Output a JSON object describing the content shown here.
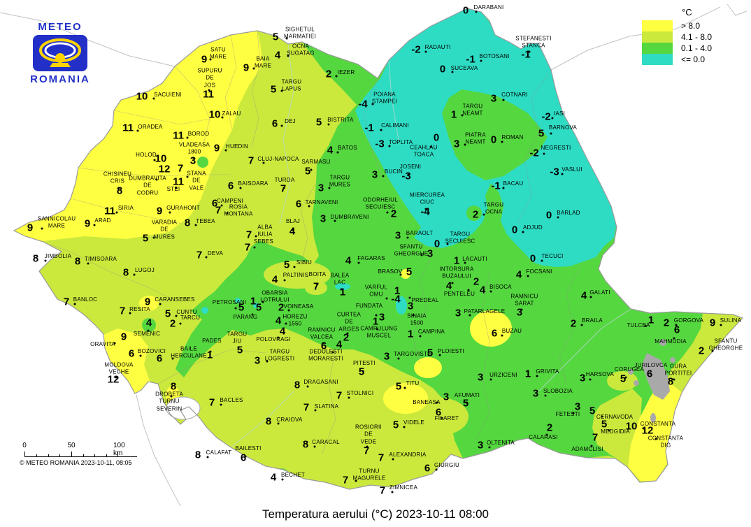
{
  "logo": {
    "top": "METEO",
    "bottom": "ROMANIA"
  },
  "legend": {
    "title": "°C",
    "items": [
      {
        "label": "> 8.0",
        "color": "#ffff42"
      },
      {
        "label": "4.1 - 8.0",
        "color": "#cbe93c"
      },
      {
        "label": "0.1 - 4.0",
        "color": "#55d73f"
      },
      {
        "label": "<= 0.0",
        "color": "#2edcc4"
      }
    ]
  },
  "colors": {
    "yellow": "#ffff42",
    "ygreen": "#cbe93c",
    "green": "#55d73f",
    "cyan": "#2edcc4"
  },
  "scalebar": {
    "t0": "0",
    "t50": "50",
    "t100": "100 km",
    "copyright": "© METEO ROMANIA 2023-10-11, 08:05"
  },
  "title": "Temperatura aerului (°C) 2023-10-11 08:00",
  "stations": [
    {
      "n": "SATU\nMARE",
      "v": "9",
      "vx": 292,
      "vy": 85,
      "nx": 312,
      "ny": 77
    },
    {
      "n": "SUPURU\nDE\nJOS",
      "v": "11",
      "vx": 298,
      "vy": 135,
      "nx": 300,
      "ny": 112
    },
    {
      "n": "SACUIENI",
      "v": "10",
      "vx": 203,
      "vy": 138,
      "nx": 240,
      "ny": 136
    },
    {
      "n": "ZALAU",
      "v": "10",
      "vx": 307,
      "vy": 164,
      "nx": 331,
      "ny": 163
    },
    {
      "n": "ORADEA",
      "v": "11",
      "vx": 183,
      "vy": 183,
      "nx": 215,
      "ny": 182
    },
    {
      "n": "BOROD",
      "v": "11",
      "vx": 255,
      "vy": 194,
      "nx": 284,
      "ny": 192
    },
    {
      "n": "BAIA\nMARE",
      "v": "9",
      "vx": 352,
      "vy": 97,
      "nx": 376,
      "ny": 90
    },
    {
      "n": "SIGHETUL\nMARMATIEI",
      "v": "5",
      "vx": 394,
      "vy": 53,
      "nx": 429,
      "ny": 48
    },
    {
      "n": "OCNA\nSUGATAG",
      "v": "4",
      "vx": 397,
      "vy": 79,
      "nx": 430,
      "ny": 72
    },
    {
      "n": "TARGU\nLAPUS",
      "v": "5",
      "vx": 391,
      "vy": 128,
      "nx": 417,
      "ny": 123
    },
    {
      "n": "IEZER",
      "v": "2",
      "vx": 470,
      "vy": 106,
      "nx": 495,
      "ny": 104
    },
    {
      "n": "DEJ",
      "v": "6",
      "vx": 393,
      "vy": 177,
      "nx": 415,
      "ny": 174
    },
    {
      "n": "BISTRITA",
      "v": "5",
      "vx": 456,
      "vy": 175,
      "nx": 487,
      "ny": 172
    },
    {
      "n": "POIANA\nSTAMPEI",
      "v": "-4",
      "vx": 519,
      "vy": 149,
      "nx": 550,
      "ny": 141
    },
    {
      "n": "CALIMANI",
      "v": "-1",
      "vx": 528,
      "vy": 183,
      "nx": 565,
      "ny": 180
    },
    {
      "n": "TOPLITA",
      "v": "-3",
      "vx": 543,
      "vy": 206,
      "nx": 573,
      "ny": 204
    },
    {
      "n": "HUEDIN",
      "v": "9",
      "vx": 310,
      "vy": 212,
      "nx": 339,
      "ny": 210
    },
    {
      "n": "CLUJ-NAPOCA",
      "v": "7",
      "vx": 359,
      "vy": 230,
      "nx": 398,
      "ny": 228
    },
    {
      "n": "SARMASU",
      "v": "5",
      "vx": 440,
      "vy": 245,
      "nx": 452,
      "ny": 232
    },
    {
      "n": "TURDA",
      "v": "7",
      "vx": 405,
      "vy": 270,
      "nx": 407,
      "ny": 258
    },
    {
      "n": "BAISOARA",
      "v": "6",
      "vx": 330,
      "vy": 266,
      "nx": 362,
      "ny": 263
    },
    {
      "n": "TARGU\nMURES",
      "v": "3",
      "vx": 459,
      "vy": 269,
      "nx": 486,
      "ny": 260
    },
    {
      "n": "BATOS",
      "v": "4",
      "vx": 472,
      "vy": 215,
      "nx": 497,
      "ny": 212
    },
    {
      "n": "BUCIN",
      "v": "3",
      "vx": 536,
      "vy": 250,
      "nx": 563,
      "ny": 246
    },
    {
      "n": "CAMPENI",
      "v": "6",
      "vx": 307,
      "vy": 291,
      "nx": 329,
      "ny": 288
    },
    {
      "n": "ROSIA\nMONTANA",
      "v": "7",
      "vx": 312,
      "vy": 301,
      "nx": 341,
      "ny": 302
    },
    {
      "n": "TARNAVENI",
      "v": "6",
      "vx": 427,
      "vy": 292,
      "nx": 460,
      "ny": 290
    },
    {
      "n": "ODORHEIUL\nSECUIESC",
      "v": "2",
      "vx": 563,
      "vy": 306,
      "nx": 544,
      "ny": 292
    },
    {
      "n": "DUMBRAVENI",
      "v": "3",
      "vx": 462,
      "vy": 313,
      "nx": 500,
      "ny": 311
    },
    {
      "n": "BLAJ",
      "v": "4",
      "vx": 418,
      "vy": 331,
      "nx": 419,
      "ny": 317
    },
    {
      "n": "ALBA\nIULIA",
      "v": "7",
      "vx": 356,
      "vy": 336,
      "nx": 379,
      "ny": 331
    },
    {
      "n": "SEBES",
      "v": "7",
      "vx": 354,
      "vy": 354,
      "nx": 377,
      "ny": 346
    },
    {
      "n": "DEVA",
      "v": "7",
      "vx": 285,
      "vy": 365,
      "nx": 308,
      "ny": 363
    },
    {
      "n": "TEBEA",
      "v": "8",
      "vx": 268,
      "vy": 319,
      "nx": 294,
      "ny": 317
    },
    {
      "n": "VARADIA\nDE\nMURES",
      "v": "5",
      "vx": 208,
      "vy": 341,
      "nx": 235,
      "ny": 329
    },
    {
      "n": "GURAHONT",
      "v": "9",
      "vx": 228,
      "vy": 302,
      "nx": 262,
      "ny": 298
    },
    {
      "n": "SIRIA",
      "v": "11",
      "vx": 157,
      "vy": 302,
      "nx": 180,
      "ny": 298
    },
    {
      "n": "ARAD",
      "v": "9",
      "vx": 125,
      "vy": 320,
      "nx": 147,
      "ny": 316
    },
    {
      "n": "CHISINEU\nCRIS",
      "v": "8",
      "vx": 171,
      "vy": 273,
      "nx": 168,
      "ny": 255
    },
    {
      "n": "HOLOD",
      "v": "10",
      "vx": 230,
      "vy": 227,
      "nx": 209,
      "ny": 222
    },
    {
      "n": "DUMBRAVITA\nDE\nCODRU",
      "v": "12",
      "vx": 235,
      "vy": 242,
      "nx": 211,
      "ny": 266
    },
    {
      "n": "STANA\nDE\nVALE",
      "v": "7",
      "vx": 258,
      "vy": 241,
      "nx": 281,
      "ny": 259
    },
    {
      "n": "STEI",
      "v": "11",
      "vx": 255,
      "vy": 260,
      "nx": 248,
      "ny": 271
    },
    {
      "n": "VLADEASA\n1800",
      "v": "3",
      "vx": 276,
      "vy": 230,
      "nx": 278,
      "ny": 213
    },
    {
      "n": "SANNICOLAU\nMARE",
      "v": "9",
      "vx": 43,
      "vy": 326,
      "nx": 81,
      "ny": 319
    },
    {
      "n": "JIMBOLIA",
      "v": "8",
      "vx": 51,
      "vy": 370,
      "nx": 83,
      "ny": 367
    },
    {
      "n": "TIMISOARA",
      "v": "8",
      "vx": 111,
      "vy": 374,
      "nx": 144,
      "ny": 371
    },
    {
      "n": "LUGOJ",
      "v": "8",
      "vx": 180,
      "vy": 390,
      "nx": 207,
      "ny": 387
    },
    {
      "n": "BANLOC",
      "v": "7",
      "vx": 95,
      "vy": 432,
      "nx": 122,
      "ny": 429
    },
    {
      "n": "RESITA",
      "v": "7",
      "vx": 175,
      "vy": 445,
      "nx": 200,
      "ny": 443
    },
    {
      "n": "CARANSEBES",
      "v": "9",
      "vx": 211,
      "vy": 432,
      "nx": 250,
      "ny": 429
    },
    {
      "n": "CUNTU",
      "v": "5",
      "vx": 240,
      "vy": 449,
      "nx": 267,
      "ny": 447
    },
    {
      "n": "TARCU",
      "v": "2",
      "vx": 247,
      "vy": 463,
      "nx": 272,
      "ny": 455
    },
    {
      "n": "SEMENIC",
      "v": "4",
      "vx": 213,
      "vy": 462,
      "nx": 210,
      "ny": 478
    },
    {
      "n": "ORAVITA",
      "v": "9",
      "vx": 177,
      "vy": 482,
      "nx": 147,
      "ny": 493
    },
    {
      "n": "BOZOVICI",
      "v": "6",
      "vx": 188,
      "vy": 506,
      "nx": 217,
      "ny": 503
    },
    {
      "n": "BAILE\nHERCULANE",
      "v": "6",
      "vx": 228,
      "vy": 513,
      "nx": 270,
      "ny": 505
    },
    {
      "n": "MOLDOVA\nVECHE",
      "v": "12",
      "vx": 162,
      "vy": 543,
      "nx": 170,
      "ny": 528
    },
    {
      "n": "PETROSANI",
      "v": "5",
      "vx": 345,
      "vy": 440,
      "nx": 328,
      "ny": 433
    },
    {
      "n": "OBARSIA\nLOTRULUI",
      "v": "1",
      "vx": 362,
      "vy": 431,
      "nx": 393,
      "ny": 425
    },
    {
      "n": "PARANG",
      "v": "5",
      "vx": 370,
      "vy": 440,
      "nx": 351,
      "ny": 454
    },
    {
      "n": "VOINEASA",
      "v": "2",
      "vx": 402,
      "vy": 440,
      "nx": 427,
      "ny": 439
    },
    {
      "n": "TARGU\nJIU",
      "v": "5",
      "vx": 343,
      "vy": 501,
      "nx": 339,
      "ny": 484
    },
    {
      "n": "PADES",
      "v": "1",
      "vx": 300,
      "vy": 508,
      "nx": 303,
      "ny": 488
    },
    {
      "n": "POLOVRAGI",
      "v": "4",
      "vx": 404,
      "vy": 474,
      "nx": 391,
      "ny": 486
    },
    {
      "n": "HOREZU\n1550",
      "v": "4",
      "vx": 398,
      "vy": 459,
      "nx": 422,
      "ny": 459
    },
    {
      "n": "RAMNICU\nVALCEA",
      "v": "6",
      "vx": 463,
      "vy": 495,
      "nx": 460,
      "ny": 478
    },
    {
      "n": "DEDULESTI\nMORARESTI",
      "v": "4",
      "vx": 485,
      "vy": 493,
      "nx": 466,
      "ny": 509
    },
    {
      "n": "CURTEA\nDE\nARGES",
      "v": "2",
      "vx": 495,
      "vy": 483,
      "nx": 499,
      "ny": 461
    },
    {
      "n": "TARGU\nLOGRESTI",
      "v": "3",
      "vx": 368,
      "vy": 516,
      "nx": 400,
      "ny": 509
    },
    {
      "n": "DRAGASANI",
      "v": "8",
      "vx": 425,
      "vy": 551,
      "nx": 459,
      "ny": 547
    },
    {
      "n": "PITESTI",
      "v": "5",
      "vx": 517,
      "vy": 532,
      "nx": 521,
      "ny": 520
    },
    {
      "n": "STOLNICI",
      "v": "7",
      "vx": 485,
      "vy": 566,
      "nx": 515,
      "ny": 563
    },
    {
      "n": "SLATINA",
      "v": "7",
      "vx": 438,
      "vy": 583,
      "nx": 467,
      "ny": 582
    },
    {
      "n": "CRAIOVA",
      "v": "8",
      "vx": 384,
      "vy": 603,
      "nx": 414,
      "ny": 601
    },
    {
      "n": "CARACAL",
      "v": "8",
      "vx": 437,
      "vy": 636,
      "nx": 466,
      "ny": 633
    },
    {
      "n": "CALAFAT",
      "v": "8",
      "vx": 283,
      "vy": 651,
      "nx": 313,
      "ny": 648
    },
    {
      "n": "BAILESTI",
      "v": "6",
      "vx": 348,
      "vy": 655,
      "nx": 355,
      "ny": 642
    },
    {
      "n": "BECHET",
      "v": "4",
      "vx": 391,
      "vy": 683,
      "nx": 419,
      "ny": 680
    },
    {
      "n": "BACLES",
      "v": "7",
      "vx": 303,
      "vy": 576,
      "nx": 331,
      "ny": 573
    },
    {
      "n": "DROBETA\nTURNU\nSEVERIN",
      "v": "8",
      "vx": 248,
      "vy": 553,
      "nx": 242,
      "ny": 575
    },
    {
      "n": "TITU",
      "v": "5",
      "vx": 570,
      "vy": 553,
      "nx": 590,
      "ny": 549
    },
    {
      "n": "TARGOVISTE",
      "v": "3",
      "vx": 553,
      "vy": 510,
      "nx": 590,
      "ny": 507
    },
    {
      "n": "PLOIESTI",
      "v": "5",
      "vx": 615,
      "vy": 505,
      "nx": 645,
      "ny": 503
    },
    {
      "n": "CAMPINA",
      "v": "1",
      "vx": 587,
      "vy": 478,
      "nx": 617,
      "ny": 475
    },
    {
      "n": "SINAIA\n1500",
      "v": "3",
      "vx": 587,
      "vy": 438,
      "nx": 596,
      "ny": 458
    },
    {
      "n": "PREDEAL",
      "v": "1",
      "vx": 568,
      "vy": 416,
      "nx": 608,
      "ny": 430
    },
    {
      "n": "VARFUL\nOMU",
      "v": "-4",
      "vx": 566,
      "vy": 428,
      "nx": 538,
      "ny": 417
    },
    {
      "n": "FUNDATA",
      "v": "3",
      "vx": 546,
      "vy": 454,
      "nx": 528,
      "ny": 438
    },
    {
      "n": "CAMPULUNG\nMUSCEL",
      "v": "1",
      "vx": 537,
      "vy": 460,
      "nx": 542,
      "ny": 476
    },
    {
      "n": "BRASOV",
      "v": "5",
      "vx": 585,
      "vy": 389,
      "nx": 558,
      "ny": 389
    },
    {
      "n": "FAGARAS",
      "v": "4",
      "vx": 498,
      "vy": 373,
      "nx": 531,
      "ny": 370
    },
    {
      "n": "BALEA\nLAC",
      "v": "1",
      "vx": 490,
      "vy": 418,
      "nx": 486,
      "ny": 400
    },
    {
      "n": "BOITA",
      "v": "7",
      "vx": 452,
      "vy": 410,
      "nx": 454,
      "ny": 393
    },
    {
      "n": "PALTINIS",
      "v": "4",
      "vx": 393,
      "vy": 400,
      "nx": 423,
      "ny": 394
    },
    {
      "n": "SIBIU",
      "v": "5",
      "vx": 410,
      "vy": 379,
      "nx": 435,
      "ny": 376
    },
    {
      "n": "SFANTU\nGHEORGHE",
      "v": "3",
      "vx": 615,
      "vy": 363,
      "nx": 588,
      "ny": 359
    },
    {
      "n": "BARAOLT",
      "v": "3",
      "vx": 569,
      "vy": 337,
      "nx": 600,
      "ny": 334
    },
    {
      "n": "TARGU\nSECUIESC",
      "v": "0",
      "vx": 625,
      "vy": 349,
      "nx": 658,
      "ny": 341
    },
    {
      "n": "MIERCUREA\nCIUC",
      "v": "-4",
      "vx": 608,
      "vy": 303,
      "nx": 611,
      "ny": 285
    },
    {
      "n": "JOSENI",
      "v": "-3",
      "vx": 581,
      "vy": 252,
      "nx": 587,
      "ny": 239
    },
    {
      "n": "LACAUTI",
      "v": "1",
      "vx": 653,
      "vy": 373,
      "nx": 679,
      "ny": 371
    },
    {
      "n": "INTORSURA\nBUZAULUI",
      "v": "4",
      "vx": 642,
      "vy": 409,
      "nx": 653,
      "ny": 391
    },
    {
      "n": "PENTELEU",
      "v": "2",
      "vx": 681,
      "vy": 403,
      "nx": 657,
      "ny": 421
    },
    {
      "n": "BISOCA",
      "v": "4",
      "vx": 690,
      "vy": 415,
      "nx": 716,
      "ny": 411
    },
    {
      "n": "PATARLAGELE",
      "v": "3",
      "vx": 655,
      "vy": 448,
      "nx": 693,
      "ny": 446
    },
    {
      "n": "BUZAU",
      "v": "6",
      "vx": 707,
      "vy": 477,
      "nx": 732,
      "ny": 474
    },
    {
      "n": "RAMNICU\nSARAT",
      "v": "3",
      "vx": 743,
      "vy": 447,
      "nx": 750,
      "ny": 430
    },
    {
      "n": "FOCSANI",
      "v": "4",
      "vx": 742,
      "vy": 393,
      "nx": 771,
      "ny": 389
    },
    {
      "n": "TECUCI",
      "v": "0",
      "vx": 762,
      "vy": 370,
      "nx": 790,
      "ny": 367
    },
    {
      "n": "GALATI",
      "v": "4",
      "vx": 835,
      "vy": 423,
      "nx": 858,
      "ny": 419
    },
    {
      "n": "BRAILA",
      "v": "2",
      "vx": 820,
      "vy": 463,
      "nx": 847,
      "ny": 459
    },
    {
      "n": "ADJUD",
      "v": "0",
      "vx": 736,
      "vy": 329,
      "nx": 762,
      "ny": 326
    },
    {
      "n": "BARLAD",
      "v": "0",
      "vx": 785,
      "vy": 308,
      "nx": 813,
      "ny": 305
    },
    {
      "n": "TARGU\nOCNA",
      "v": "2",
      "vx": 680,
      "vy": 307,
      "nx": 706,
      "ny": 299
    },
    {
      "n": "BACAU",
      "v": "-1",
      "vx": 709,
      "vy": 266,
      "nx": 734,
      "ny": 263
    },
    {
      "n": "VASLUI",
      "v": "-3",
      "vx": 793,
      "vy": 246,
      "nx": 818,
      "ny": 243
    },
    {
      "n": "NEGRESTI",
      "v": "-2",
      "vx": 764,
      "vy": 219,
      "nx": 795,
      "ny": 212
    },
    {
      "n": "CEAHLAU\nTOACA",
      "v": "0",
      "vx": 624,
      "vy": 197,
      "nx": 606,
      "ny": 217
    },
    {
      "n": "PIATRA\nNEAMT",
      "v": "3",
      "vx": 653,
      "vy": 206,
      "nx": 680,
      "ny": 199
    },
    {
      "n": "ROMAN",
      "v": "0",
      "vx": 706,
      "vy": 200,
      "nx": 733,
      "ny": 197
    },
    {
      "n": "TARGU\nNEAMT",
      "v": "1",
      "vx": 649,
      "vy": 164,
      "nx": 676,
      "ny": 158
    },
    {
      "n": "COTNARI",
      "v": "3",
      "vx": 706,
      "vy": 141,
      "nx": 736,
      "ny": 136
    },
    {
      "n": "IASI",
      "v": "-2",
      "vx": 781,
      "vy": 167,
      "nx": 800,
      "ny": 163
    },
    {
      "n": "BARNOVA",
      "v": "5",
      "vx": 774,
      "vy": 191,
      "nx": 805,
      "ny": 183
    },
    {
      "n": "SUCEAVA",
      "v": "0",
      "vx": 633,
      "vy": 99,
      "nx": 664,
      "ny": 98
    },
    {
      "n": "BOTOSANI",
      "v": "-1",
      "vx": 673,
      "vy": 85,
      "nx": 707,
      "ny": 81
    },
    {
      "n": "RADAUTI",
      "v": "-2",
      "vx": 595,
      "vy": 71,
      "nx": 626,
      "ny": 68
    },
    {
      "n": "DARABANI",
      "v": "0",
      "vx": 666,
      "vy": 15,
      "nx": 699,
      "ny": 11
    },
    {
      "n": "STEFANESTI\nSTANCA",
      "v": "-1",
      "vx": 752,
      "vy": 78,
      "nx": 763,
      "ny": 61
    },
    {
      "n": "URZICENI",
      "v": "3",
      "vx": 687,
      "vy": 540,
      "nx": 720,
      "ny": 537
    },
    {
      "n": "GRIVITA",
      "v": "1",
      "vx": 755,
      "vy": 535,
      "nx": 783,
      "ny": 532
    },
    {
      "n": "SLOBOZIA",
      "v": "3",
      "vx": 766,
      "vy": 563,
      "nx": 798,
      "ny": 560
    },
    {
      "n": "HARSOVA",
      "v": "3",
      "vx": 833,
      "vy": 541,
      "nx": 858,
      "ny": 536
    },
    {
      "n": "CORUGEA",
      "v": "5",
      "vx": 891,
      "vy": 542,
      "nx": 900,
      "ny": 529
    },
    {
      "n": "FETESTI",
      "v": "3",
      "vx": 826,
      "vy": 582,
      "nx": 812,
      "ny": 593
    },
    {
      "n": "CERNAVODA",
      "v": "5",
      "vx": 847,
      "vy": 588,
      "nx": 879,
      "ny": 597
    },
    {
      "n": "MEDGIDIA",
      "v": "5",
      "vx": 864,
      "vy": 607,
      "nx": 880,
      "ny": 618
    },
    {
      "n": "CONSTANTA",
      "v": "10",
      "vx": 903,
      "vy": 610,
      "nx": 941,
      "ny": 607
    },
    {
      "n": "CONSTANTA\nDIG",
      "v": "12",
      "vx": 926,
      "vy": 616,
      "nx": 952,
      "ny": 633
    },
    {
      "n": "ADAMCLISI",
      "v": "7",
      "vx": 851,
      "vy": 626,
      "nx": 840,
      "ny": 643
    },
    {
      "n": "CALARASI",
      "v": "2",
      "vx": 786,
      "vy": 612,
      "nx": 777,
      "ny": 626
    },
    {
      "n": "OLTENITA",
      "v": "3",
      "vx": 687,
      "vy": 637,
      "nx": 716,
      "ny": 634
    },
    {
      "n": "AFUMATI",
      "v": "5",
      "vx": 666,
      "vy": 577,
      "nx": 668,
      "ny": 566
    },
    {
      "n": "BANEASA",
      "v": "3",
      "vx": 638,
      "vy": 568,
      "nx": 610,
      "ny": 576
    },
    {
      "n": "FILARET",
      "v": "6",
      "vx": 627,
      "vy": 590,
      "nx": 639,
      "ny": 599
    },
    {
      "n": "VIDELE",
      "v": "5",
      "vx": 566,
      "vy": 608,
      "nx": 592,
      "ny": 605
    },
    {
      "n": "ROSIORII\nDE\nVEDE",
      "v": "7",
      "vx": 524,
      "vy": 645,
      "nx": 527,
      "ny": 622
    },
    {
      "n": "ALEXANDRIA",
      "v": "7",
      "vx": 545,
      "vy": 655,
      "nx": 583,
      "ny": 651
    },
    {
      "n": "GIURGIU",
      "v": "6",
      "vx": 611,
      "vy": 670,
      "nx": 639,
      "ny": 666
    },
    {
      "n": "TURNU\nMAGURELE",
      "v": "7",
      "vx": 494,
      "vy": 687,
      "nx": 528,
      "ny": 680
    },
    {
      "n": "ZIMNICEA",
      "v": "7",
      "vx": 547,
      "vy": 702,
      "nx": 577,
      "ny": 698
    },
    {
      "n": "TULCEA",
      "v": "1",
      "vx": 931,
      "vy": 458,
      "nx": 913,
      "ny": 466
    },
    {
      "n": "GORGOVA",
      "v": "2",
      "vx": 953,
      "vy": 462,
      "nx": 985,
      "ny": 459
    },
    {
      "n": "SULINA",
      "v": "9",
      "vx": 1019,
      "vy": 462,
      "nx": 1045,
      "ny": 459
    },
    {
      "n": "MAHMUDIA",
      "v": "6",
      "vx": 968,
      "vy": 472,
      "nx": 959,
      "ny": 489
    },
    {
      "n": "SFANTU\nGHEORGHE",
      "v": "2",
      "vx": 1003,
      "vy": 502,
      "nx": 1038,
      "ny": 494
    },
    {
      "n": "JURILOVCA",
      "v": "6",
      "vx": 929,
      "vy": 535,
      "nx": 931,
      "ny": 523
    },
    {
      "n": "GURA\nPORTITEI",
      "v": "8",
      "vx": 959,
      "vy": 546,
      "nx": 970,
      "ny": 530
    }
  ]
}
